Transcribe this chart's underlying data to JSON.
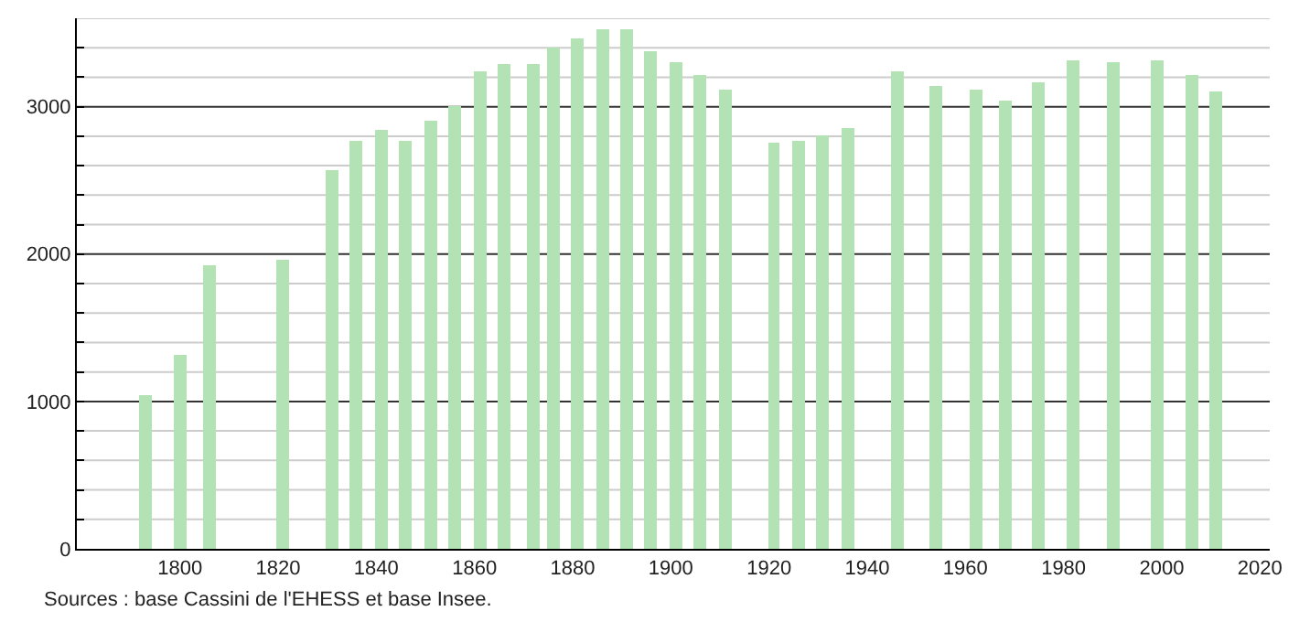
{
  "chart_data": {
    "type": "bar",
    "annotations": [
      "Sources : base Cassini de l'EHESS et base Insee."
    ],
    "x": [
      1793,
      1800,
      1806,
      1821,
      1831,
      1836,
      1841,
      1846,
      1851,
      1856,
      1861,
      1866,
      1872,
      1876,
      1881,
      1886,
      1891,
      1896,
      1901,
      1906,
      1911,
      1921,
      1926,
      1931,
      1936,
      1946,
      1954,
      1962,
      1968,
      1975,
      1982,
      1990,
      1999,
      2006,
      2011
    ],
    "values": [
      1040,
      1310,
      1920,
      1960,
      2570,
      2770,
      2840,
      2770,
      2910,
      3010,
      3240,
      3290,
      3290,
      3400,
      3460,
      3520,
      3520,
      3380,
      3300,
      3210,
      3110,
      2760,
      2770,
      2810,
      2850,
      3240,
      3140,
      3110,
      3040,
      3170,
      3310,
      3300,
      3320,
      3210,
      3100
    ],
    "color": "#b3e3b5",
    "xlim": [
      1779,
      2022
    ],
    "xticks": [
      1800,
      1820,
      1840,
      1860,
      1880,
      1900,
      1920,
      1940,
      1960,
      1980,
      2000,
      2020
    ],
    "ylim": [
      0,
      3600
    ],
    "yticks": [
      0,
      {
        "value": 200,
        "label": null
      },
      {
        "value": 400,
        "label": null
      },
      {
        "value": 600,
        "label": null
      },
      {
        "value": 800,
        "label": null
      },
      1000,
      {
        "value": 1200,
        "label": null
      },
      {
        "value": 1400,
        "label": null
      },
      {
        "value": 1600,
        "label": null
      },
      {
        "value": 1800,
        "label": null
      },
      2000,
      {
        "value": 2200,
        "label": null
      },
      {
        "value": 2400,
        "label": null
      },
      {
        "value": 2600,
        "label": null
      },
      {
        "value": 2800,
        "label": null
      },
      3000,
      {
        "value": 3200,
        "label": null
      },
      {
        "value": 3400,
        "label": null
      },
      {
        "value": 3600,
        "label": null
      }
    ],
    "grid": true
  }
}
